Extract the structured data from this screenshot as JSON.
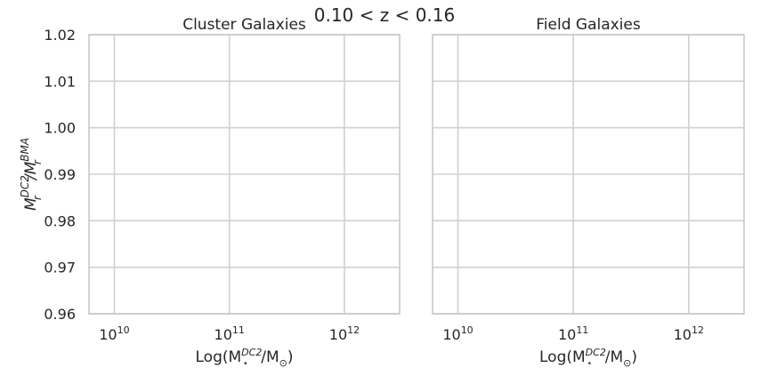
{
  "figure": {
    "suptitle": "0.10 < z < 0.16"
  },
  "chart_data": [
    {
      "type": "scatter",
      "title": "Cluster Galaxies",
      "xlabel_base": "Log(M",
      "xlabel_sub": "⋆",
      "xlabel_sup": "DC2",
      "xlabel_tail": "/M",
      "xlabel_tail_sub": "⊙",
      "xlabel_close": ")",
      "ylabel_base": "M",
      "ylabel_num_sub": "r",
      "ylabel_num_sup": "DC2",
      "ylabel_mid": "/M",
      "ylabel_den_sub": "r",
      "ylabel_den_sup": "BMA",
      "xscale": "log",
      "xlim_log10": [
        9.78,
        12.48
      ],
      "ylim": [
        0.96,
        1.02
      ],
      "xticks": [
        {
          "base": "10",
          "exp": "10",
          "log10": 10
        },
        {
          "base": "10",
          "exp": "11",
          "log10": 11
        },
        {
          "base": "10",
          "exp": "12",
          "log10": 12
        }
      ],
      "yticks": [
        {
          "label": "0.96",
          "value": 0.96
        },
        {
          "label": "0.97",
          "value": 0.97
        },
        {
          "label": "0.98",
          "value": 0.98
        },
        {
          "label": "0.99",
          "value": 0.99
        },
        {
          "label": "1.00",
          "value": 1.0
        },
        {
          "label": "1.01",
          "value": 1.01
        },
        {
          "label": "1.02",
          "value": 1.02
        }
      ],
      "grid": true,
      "series": []
    },
    {
      "type": "scatter",
      "title": "Field   Galaxies",
      "xlabel_base": "Log(M",
      "xlabel_sub": "⋆",
      "xlabel_sup": "DC2",
      "xlabel_tail": "/M",
      "xlabel_tail_sub": "⊙",
      "xlabel_close": ")",
      "xscale": "log",
      "xlim_log10": [
        9.78,
        12.48
      ],
      "ylim": [
        0.96,
        1.02
      ],
      "xticks": [
        {
          "base": "10",
          "exp": "10",
          "log10": 10
        },
        {
          "base": "10",
          "exp": "11",
          "log10": 11
        },
        {
          "base": "10",
          "exp": "12",
          "log10": 12
        }
      ],
      "yticks": [],
      "grid": true,
      "series": []
    }
  ],
  "colors": {
    "grid": "#d0d0d0",
    "spine": "#c8c8c8",
    "text": "#262626"
  }
}
